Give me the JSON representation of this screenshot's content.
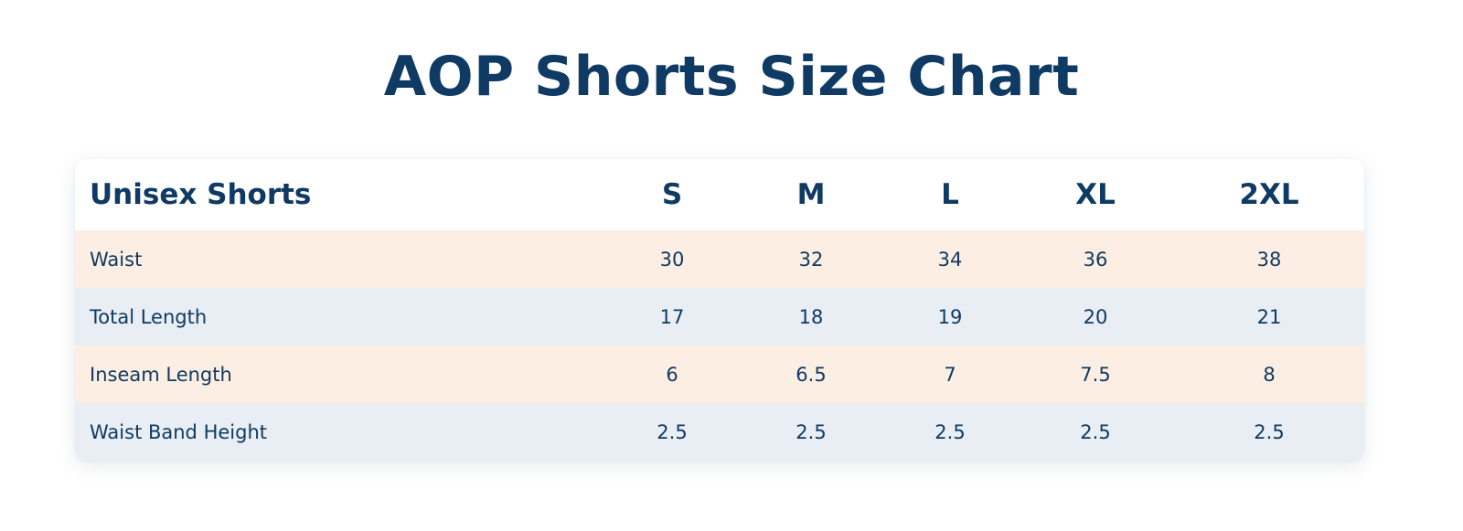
{
  "title": "AOP Shorts Size Chart",
  "table": {
    "corner_label": "Unisex Shorts",
    "sizes": [
      "S",
      "M",
      "L",
      "XL",
      "2XL"
    ],
    "rows": [
      {
        "label": "Waist",
        "values": [
          "30",
          "32",
          "34",
          "36",
          "38"
        ]
      },
      {
        "label": "Total Length",
        "values": [
          "17",
          "18",
          "19",
          "20",
          "21"
        ]
      },
      {
        "label": "Inseam Length",
        "values": [
          "6",
          "6.5",
          "7",
          "7.5",
          "8"
        ]
      },
      {
        "label": "Waist Band Height",
        "values": [
          "2.5",
          "2.5",
          "2.5",
          "2.5",
          "2.5"
        ]
      }
    ]
  },
  "colors": {
    "text": "#0f3a63",
    "row_peach": "#fdeee3",
    "row_blue_gray": "#e8eef3",
    "background": "#ffffff"
  }
}
